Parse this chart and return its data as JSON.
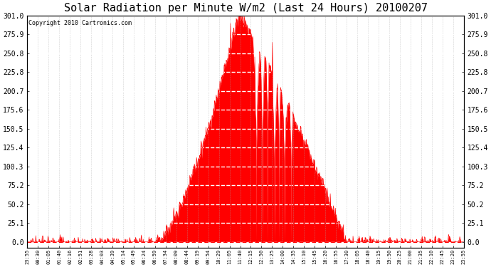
{
  "title": "Solar Radiation per Minute W/m2 (Last 24 Hours) 20100207",
  "copyright": "Copyright 2010 Cartronics.com",
  "y_ticks": [
    0.0,
    25.1,
    50.2,
    75.2,
    100.3,
    125.4,
    150.5,
    175.6,
    200.7,
    225.8,
    250.8,
    275.9,
    301.0
  ],
  "y_max": 301.0,
  "fill_color": "#ff0000",
  "line_color": "#ff0000",
  "dashed_line_color": "#ff0000",
  "background_color": "#ffffff",
  "x_labels": [
    "23:55",
    "00:30",
    "01:05",
    "01:40",
    "02:16",
    "02:51",
    "03:28",
    "04:03",
    "04:39",
    "05:14",
    "05:49",
    "06:24",
    "06:59",
    "07:34",
    "08:09",
    "08:44",
    "09:19",
    "09:54",
    "10:29",
    "11:05",
    "11:40",
    "12:15",
    "12:50",
    "13:25",
    "14:00",
    "14:35",
    "15:10",
    "15:45",
    "16:20",
    "16:55",
    "17:30",
    "18:05",
    "18:40",
    "19:15",
    "19:50",
    "20:25",
    "21:00",
    "21:35",
    "22:10",
    "22:45",
    "23:20",
    "23:55"
  ],
  "num_points": 1440,
  "title_fontsize": 11,
  "copyright_fontsize": 6,
  "ytick_fontsize": 7,
  "xtick_fontsize": 5
}
